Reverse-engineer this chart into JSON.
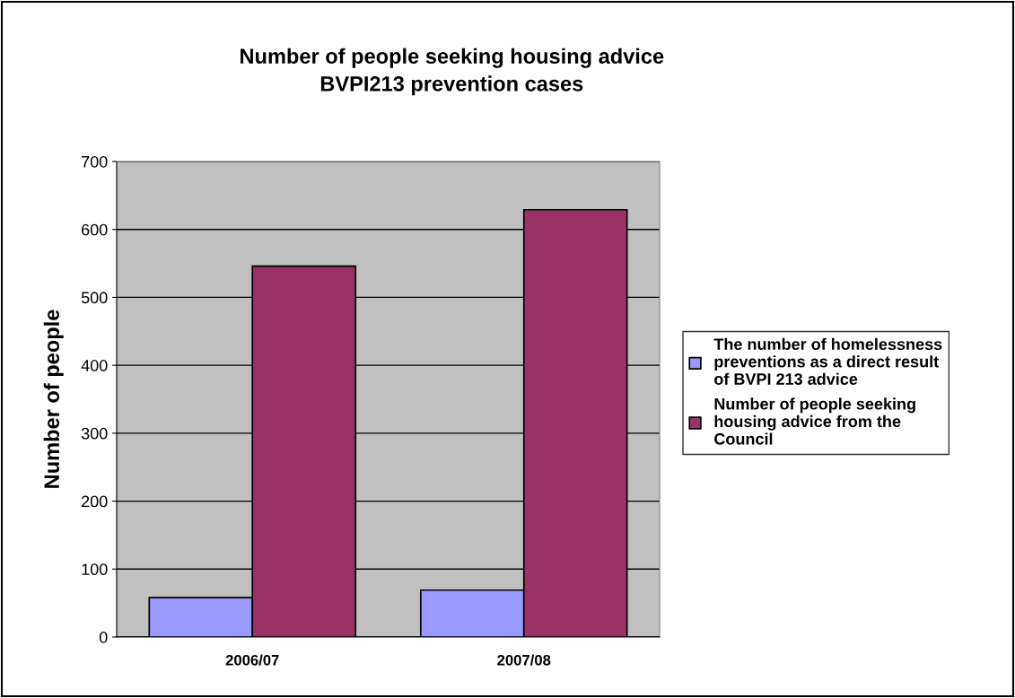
{
  "chart_data": {
    "type": "bar",
    "title": "Number of people seeking housing advice\nBVPI213 prevention cases",
    "ylabel": "Number of people",
    "categories": [
      "2006/07",
      "2007/08"
    ],
    "series": [
      {
        "name": "The number of homelessness\npreventions as a direct result\nof BVPI 213 advice",
        "color": "#9999ff",
        "values": [
          58,
          69
        ]
      },
      {
        "name": "Number of people seeking\nhousing advice from the\nCouncil",
        "color": "#993366",
        "values": [
          546,
          629
        ]
      }
    ],
    "ylim": [
      0,
      700
    ],
    "yticks": [
      0,
      100,
      200,
      300,
      400,
      500,
      600,
      700
    ],
    "grid": "y",
    "legend": "right"
  }
}
